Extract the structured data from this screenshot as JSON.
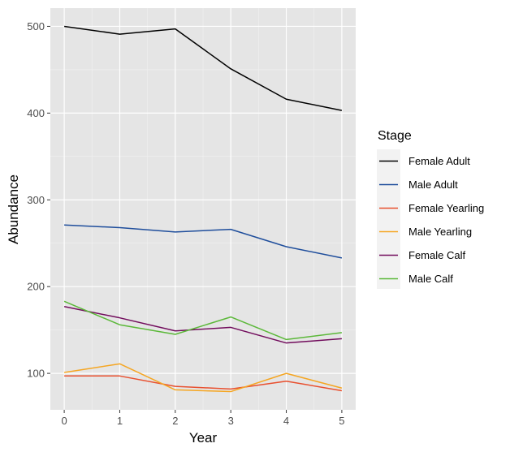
{
  "chart_data": {
    "type": "line",
    "title": "",
    "xlabel": "Year",
    "ylabel": "Abundance",
    "x": [
      0,
      1,
      2,
      3,
      4,
      5
    ],
    "xlim": [
      -0.25,
      5.25
    ],
    "ylim": [
      58,
      521
    ],
    "x_ticks": [
      0,
      1,
      2,
      3,
      4,
      5
    ],
    "y_ticks": [
      100,
      200,
      300,
      400,
      500
    ],
    "grid": true,
    "legend": {
      "title": "Stage",
      "position": "right"
    },
    "series": [
      {
        "name": "Female Adult",
        "color": "#000000",
        "values": [
          500,
          491,
          497,
          451,
          416,
          403
        ]
      },
      {
        "name": "Male Adult",
        "color": "#1f4e9c",
        "values": [
          271,
          268,
          263,
          266,
          246,
          233
        ]
      },
      {
        "name": "Female Yearling",
        "color": "#e8502f",
        "values": [
          97,
          97,
          85,
          82,
          91,
          80
        ]
      },
      {
        "name": "Male Yearling",
        "color": "#f5a623",
        "values": [
          101,
          111,
          81,
          79,
          100,
          83
        ]
      },
      {
        "name": "Female Calf",
        "color": "#720d5d",
        "values": [
          177,
          164,
          149,
          153,
          135,
          140
        ]
      },
      {
        "name": "Male Calf",
        "color": "#5bb839",
        "values": [
          183,
          156,
          145,
          165,
          139,
          147
        ]
      }
    ]
  }
}
